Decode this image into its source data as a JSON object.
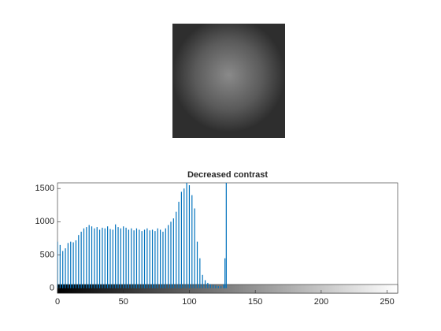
{
  "chart_data": {
    "type": "stem",
    "title": "Decreased contrast",
    "x": [
      0,
      2,
      4,
      6,
      8,
      10,
      12,
      14,
      16,
      18,
      20,
      22,
      24,
      26,
      28,
      30,
      32,
      34,
      36,
      38,
      40,
      42,
      44,
      46,
      48,
      50,
      52,
      54,
      56,
      58,
      60,
      62,
      64,
      66,
      68,
      70,
      72,
      74,
      76,
      78,
      80,
      82,
      84,
      86,
      88,
      90,
      92,
      94,
      96,
      98,
      100,
      102,
      104,
      106,
      108,
      110,
      112,
      114,
      116,
      118,
      120,
      122,
      124,
      126,
      127,
      128
    ],
    "values": [
      700,
      650,
      560,
      600,
      680,
      700,
      690,
      720,
      800,
      850,
      900,
      920,
      950,
      930,
      900,
      920,
      880,
      910,
      900,
      930,
      890,
      880,
      960,
      920,
      900,
      930,
      910,
      880,
      900,
      870,
      900,
      880,
      860,
      880,
      900,
      870,
      880,
      860,
      900,
      880,
      850,
      900,
      950,
      1000,
      1050,
      1150,
      1300,
      1450,
      1500,
      1600,
      1550,
      1400,
      1200,
      700,
      450,
      200,
      120,
      80,
      60,
      50,
      40,
      30,
      30,
      60,
      450,
      1700
    ],
    "color": "#0072bd",
    "xlim": [
      0,
      258
    ],
    "xticks": [
      0,
      50,
      100,
      150,
      200,
      250
    ],
    "ylim": [
      -75,
      1585
    ],
    "yticks": [
      0,
      500,
      1000,
      1500
    ]
  }
}
